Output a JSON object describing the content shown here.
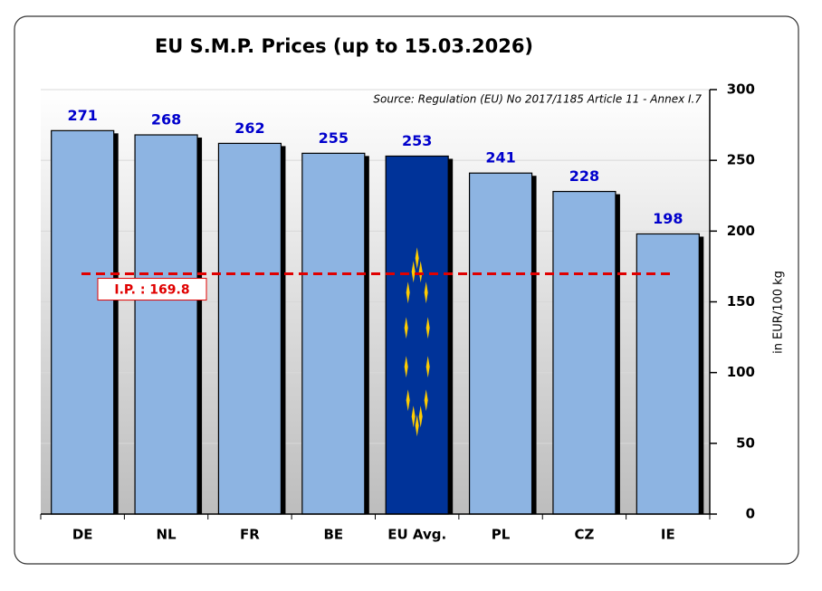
{
  "chart_data": {
    "type": "bar",
    "title": "EU  S.M.P. Prices  (up to 15.03.2026)",
    "source": "Source: Regulation (EU) No 2017/1185 Article 11 - Annex I.7",
    "y_axis_label": "in EUR/100 kg",
    "categories": [
      "DE",
      "NL",
      "FR",
      "BE",
      "EU Avg.",
      "PL",
      "CZ",
      "IE"
    ],
    "values": [
      271,
      268,
      262,
      255,
      253,
      241,
      228,
      198
    ],
    "colors": [
      "#8db4e2",
      "#8db4e2",
      "#8db4e2",
      "#8db4e2",
      "#003399",
      "#8db4e2",
      "#8db4e2",
      "#8db4e2"
    ],
    "ylim": [
      0,
      300
    ],
    "yticks": [
      0,
      50,
      100,
      150,
      200,
      250,
      300
    ],
    "grid": true,
    "reference_line": {
      "value": 169.8,
      "label": "I.P. : 169.8",
      "color": "#e00000"
    }
  }
}
